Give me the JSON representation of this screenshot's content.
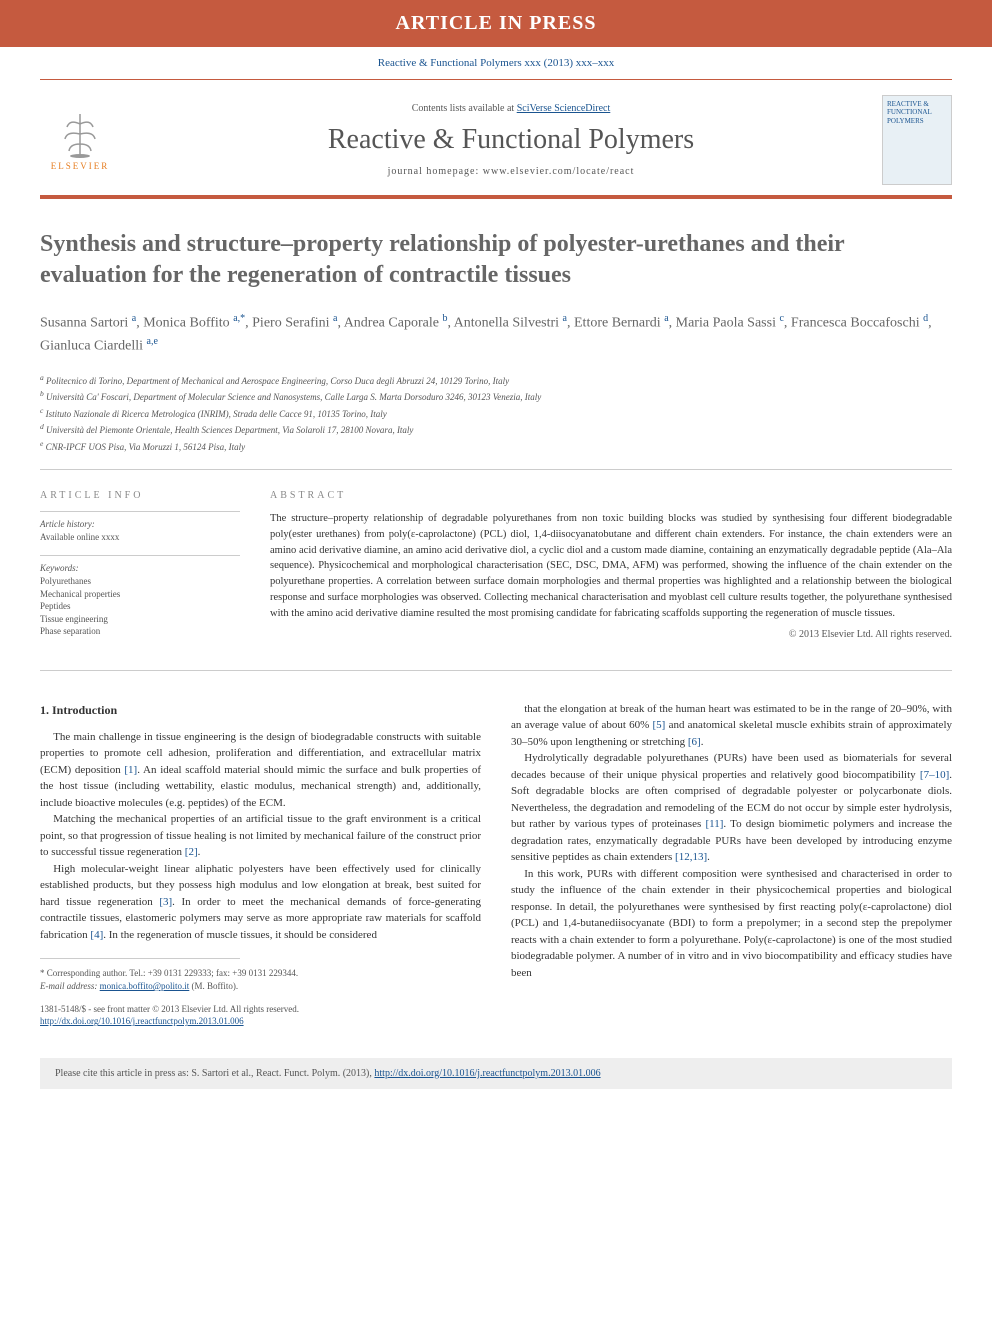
{
  "banner": "ARTICLE IN PRESS",
  "journal_ref": "Reactive & Functional Polymers xxx (2013) xxx–xxx",
  "header": {
    "elsevier": "ELSEVIER",
    "contents_prefix": "Contents lists available at ",
    "contents_link": "SciVerse ScienceDirect",
    "journal_title": "Reactive & Functional Polymers",
    "homepage": "journal homepage: www.elsevier.com/locate/react",
    "cover_text": "REACTIVE & FUNCTIONAL POLYMERS"
  },
  "title": "Synthesis and structure–property relationship of polyester-urethanes and their evaluation for the regeneration of contractile tissues",
  "authors_html": "Susanna Sartori <sup>a</sup>, Monica Boffito <sup>a,*</sup>, Piero Serafini <sup>a</sup>, Andrea Caporale <sup>b</sup>, Antonella Silvestri <sup>a</sup>, Ettore Bernardi <sup>a</sup>, Maria Paola Sassi <sup>c</sup>, Francesca Boccafoschi <sup>d</sup>, Gianluca Ciardelli <sup>a,e</sup>",
  "affiliations": [
    "a Politecnico di Torino, Department of Mechanical and Aerospace Engineering, Corso Duca degli Abruzzi 24, 10129 Torino, Italy",
    "b Università Ca' Foscari, Department of Molecular Science and Nanosystems, Calle Larga S. Marta Dorsoduro 3246, 30123 Venezia, Italy",
    "c Istituto Nazionale di Ricerca Metrologica (INRIM), Strada delle Cacce 91, 10135 Torino, Italy",
    "d Università del Piemonte Orientale, Health Sciences Department, Via Solaroli 17, 28100 Novara, Italy",
    "e CNR-IPCF UOS Pisa, Via Moruzzi 1, 56124 Pisa, Italy"
  ],
  "article_info": {
    "head": "ARTICLE INFO",
    "history_label": "Article history:",
    "history_text": "Available online xxxx",
    "keywords_label": "Keywords:",
    "keywords": [
      "Polyurethanes",
      "Mechanical properties",
      "Peptides",
      "Tissue engineering",
      "Phase separation"
    ]
  },
  "abstract": {
    "head": "ABSTRACT",
    "text": "The structure–property relationship of degradable polyurethanes from non toxic building blocks was studied by synthesising four different biodegradable poly(ester urethanes) from poly(ε-caprolactone) (PCL) diol, 1,4-diisocyanatobutane and different chain extenders. For instance, the chain extenders were an amino acid derivative diamine, an amino acid derivative diol, a cyclic diol and a custom made diamine, containing an enzymatically degradable peptide (Ala–Ala sequence). Physicochemical and morphological characterisation (SEC, DSC, DMA, AFM) was performed, showing the influence of the chain extender on the polyurethane properties. A correlation between surface domain morphologies and thermal properties was highlighted and a relationship between the biological response and surface morphologies was observed. Collecting mechanical characterisation and myoblast cell culture results together, the polyurethane synthesised with the amino acid derivative diamine resulted the most promising candidate for fabricating scaffolds supporting the regeneration of muscle tissues.",
    "copyright": "© 2013 Elsevier Ltd. All rights reserved."
  },
  "body": {
    "intro_head": "1. Introduction",
    "left_paras": [
      "The main challenge in tissue engineering is the design of biodegradable constructs with suitable properties to promote cell adhesion, proliferation and differentiation, and extracellular matrix (ECM) deposition [1]. An ideal scaffold material should mimic the surface and bulk properties of the host tissue (including wettability, elastic modulus, mechanical strength) and, additionally, include bioactive molecules (e.g. peptides) of the ECM.",
      "Matching the mechanical properties of an artificial tissue to the graft environment is a critical point, so that progression of tissue healing is not limited by mechanical failure of the construct prior to successful tissue regeneration [2].",
      "High molecular-weight linear aliphatic polyesters have been effectively used for clinically established products, but they possess high modulus and low elongation at break, best suited for hard tissue regeneration [3]. In order to meet the mechanical demands of force-generating contractile tissues, elastomeric polymers may serve as more appropriate raw materials for scaffold fabrication [4]. In the regeneration of muscle tissues, it should be considered"
    ],
    "right_paras": [
      "that the elongation at break of the human heart was estimated to be in the range of 20–90%, with an average value of about 60% [5] and anatomical skeletal muscle exhibits strain of approximately 30–50% upon lengthening or stretching [6].",
      "Hydrolytically degradable polyurethanes (PURs) have been used as biomaterials for several decades because of their unique physical properties and relatively good biocompatibility [7–10]. Soft degradable blocks are often comprised of degradable polyester or polycarbonate diols. Nevertheless, the degradation and remodeling of the ECM do not occur by simple ester hydrolysis, but rather by various types of proteinases [11]. To design biomimetic polymers and increase the degradation rates, enzymatically degradable PURs have been developed by introducing enzyme sensitive peptides as chain extenders [12,13].",
      "In this work, PURs with different composition were synthesised and characterised in order to study the influence of the chain extender in their physicochemical properties and biological response. In detail, the polyurethanes were synthesised by first reacting poly(ε-caprolactone) diol (PCL) and 1,4-butanediisocyanate (BDI) to form a prepolymer; in a second step the prepolymer reacts with a chain extender to form a polyurethane. Poly(ε-caprolactone) is one of the most studied biodegradable polymer. A number of in vitro and in vivo biocompatibility and efficacy studies have been"
    ]
  },
  "corresponding": {
    "line1": "* Corresponding author. Tel.: +39 0131 229333; fax: +39 0131 229344.",
    "email_label": "E-mail address:",
    "email": "monica.boffito@polito.it",
    "email_name": "(M. Boffito)."
  },
  "doi": {
    "line1": "1381-5148/$ - see front matter © 2013 Elsevier Ltd. All rights reserved.",
    "url": "http://dx.doi.org/10.1016/j.reactfunctpolym.2013.01.006"
  },
  "cite": {
    "prefix": "Please cite this article in press as: S. Sartori et al., React. Funct. Polym. (2013), ",
    "url": "http://dx.doi.org/10.1016/j.reactfunctpolym.2013.01.006"
  },
  "colors": {
    "orange_bar": "#c55a3f",
    "link_blue": "#1a5490",
    "text_gray": "#666666"
  }
}
